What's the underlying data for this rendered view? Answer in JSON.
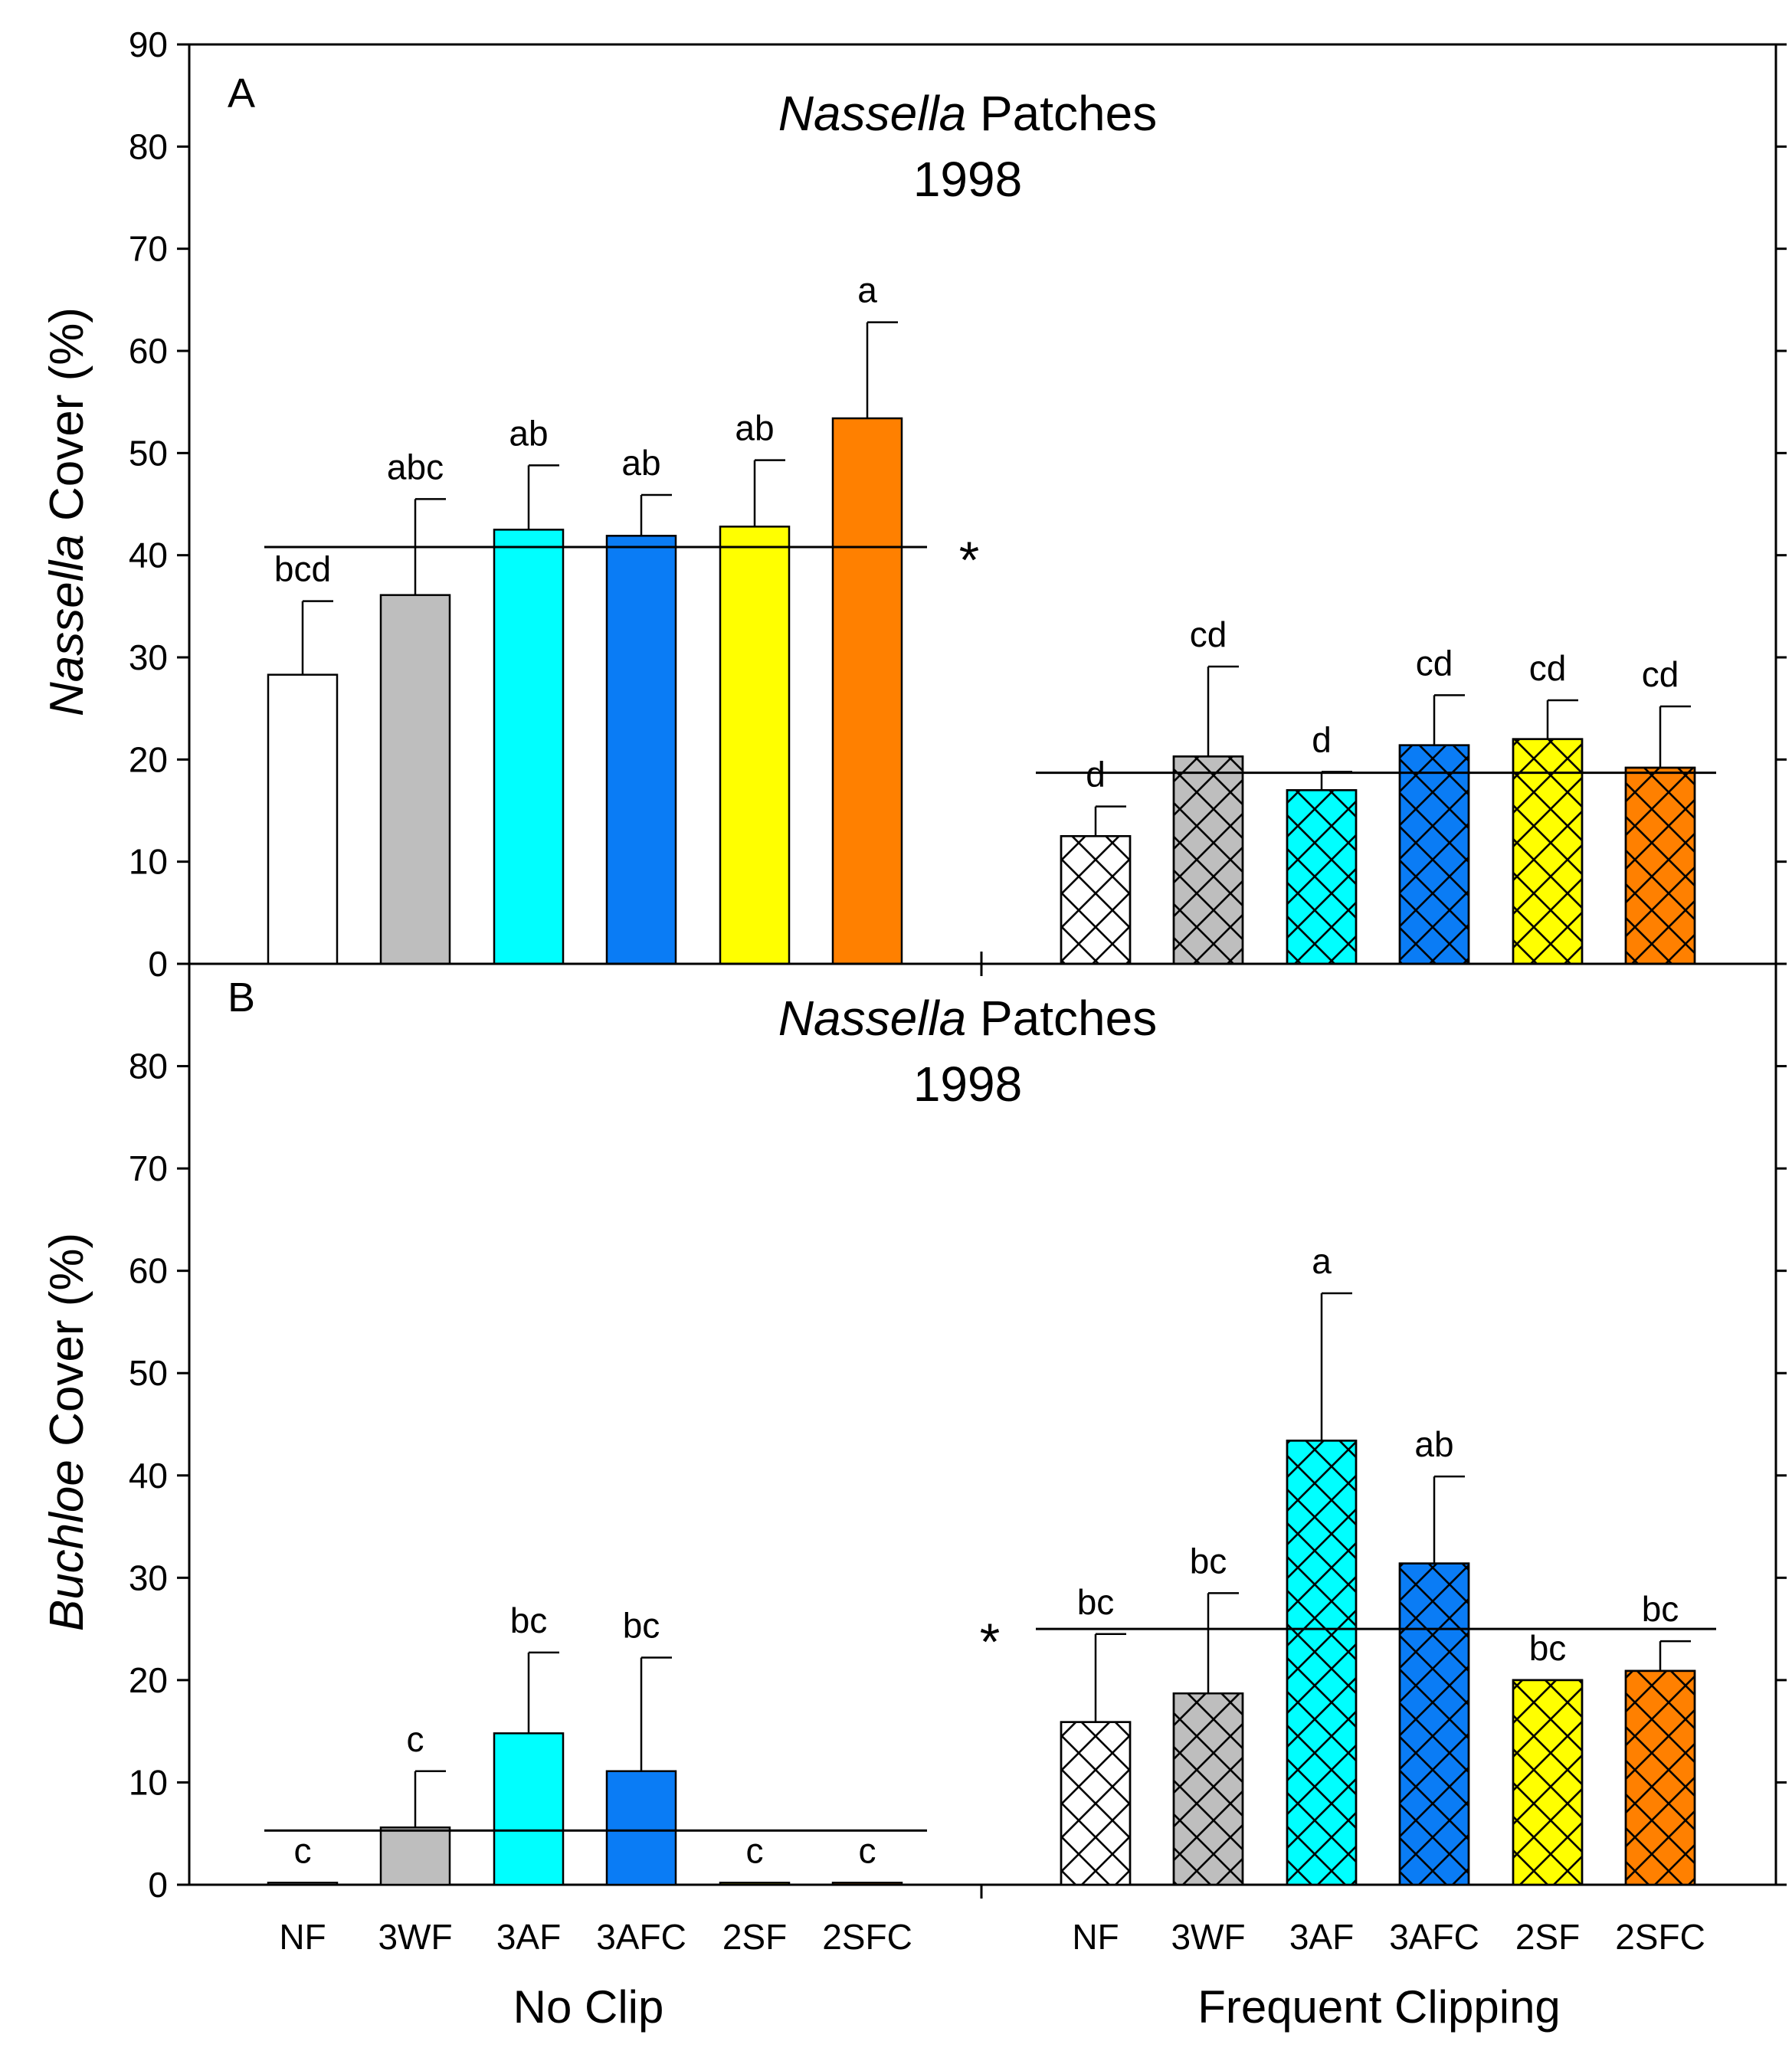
{
  "chart_data": [
    {
      "panel": "A",
      "type": "bar",
      "title": [
        "Nassella Patches",
        "1998"
      ],
      "title_italic_word": "Nassella",
      "ylabel": "Nassella Cover (%)",
      "ylabel_italic_word": "Nassella",
      "ylim": [
        0,
        90
      ],
      "yticks": [
        0,
        10,
        20,
        30,
        40,
        50,
        60,
        70,
        80,
        90
      ],
      "groups": [
        {
          "name": "No Clip",
          "hatched": false,
          "bars": [
            {
              "category": "NF",
              "value": 28.3,
              "error": 7.2,
              "letter": "bcd",
              "color": "#ffffff"
            },
            {
              "category": "3WF",
              "value": 36.1,
              "error": 9.4,
              "letter": "abc",
              "color": "#bebebe"
            },
            {
              "category": "3AF",
              "value": 42.5,
              "error": 6.3,
              "letter": "ab",
              "color": "#00ffff"
            },
            {
              "category": "3AFC",
              "value": 41.9,
              "error": 4.0,
              "letter": "ab",
              "color": "#0a7cf5"
            },
            {
              "category": "2SF",
              "value": 42.8,
              "error": 6.5,
              "letter": "ab",
              "color": "#ffff00"
            },
            {
              "category": "2SFC",
              "value": 53.4,
              "error": 9.4,
              "letter": "a",
              "color": "#ff8000"
            }
          ],
          "mean_line": 40.8,
          "star": "*",
          "star_side": "right"
        },
        {
          "name": "Frequent Clipping",
          "hatched": true,
          "bars": [
            {
              "category": "NF",
              "value": 12.5,
              "error": 2.9,
              "letter": "d",
              "color": "#ffffff"
            },
            {
              "category": "3WF",
              "value": 20.3,
              "error": 8.8,
              "letter": "cd",
              "color": "#bebebe"
            },
            {
              "category": "3AF",
              "value": 17.0,
              "error": 1.8,
              "letter": "d",
              "color": "#00ffff"
            },
            {
              "category": "3AFC",
              "value": 21.4,
              "error": 4.9,
              "letter": "cd",
              "color": "#0a7cf5"
            },
            {
              "category": "2SF",
              "value": 22.0,
              "error": 3.8,
              "letter": "cd",
              "color": "#ffff00"
            },
            {
              "category": "2SFC",
              "value": 19.2,
              "error": 6.0,
              "letter": "cd",
              "color": "#ff8000"
            }
          ],
          "mean_line": 18.7,
          "star": "",
          "star_side": "right"
        }
      ]
    },
    {
      "panel": "B",
      "type": "bar",
      "title": [
        "Nassella Patches",
        "1998"
      ],
      "title_italic_word": "Nassella",
      "ylabel": "Buchloe Cover (%)",
      "ylabel_italic_word": "Buchloe",
      "ylim": [
        0,
        90
      ],
      "yticks": [
        0,
        10,
        20,
        30,
        40,
        50,
        60,
        70,
        80
      ],
      "groups": [
        {
          "name": "No Clip",
          "hatched": false,
          "bars": [
            {
              "category": "NF",
              "value": 0.2,
              "error": 0,
              "letter": "c",
              "color": "#ffffff"
            },
            {
              "category": "3WF",
              "value": 5.6,
              "error": 5.5,
              "letter": "c",
              "color": "#bebebe"
            },
            {
              "category": "3AF",
              "value": 14.8,
              "error": 7.9,
              "letter": "bc",
              "color": "#00ffff"
            },
            {
              "category": "3AFC",
              "value": 11.1,
              "error": 11.1,
              "letter": "bc",
              "color": "#0a7cf5"
            },
            {
              "category": "2SF",
              "value": 0.2,
              "error": 0,
              "letter": "c",
              "color": "#ffff00"
            },
            {
              "category": "2SFC",
              "value": 0.2,
              "error": 0,
              "letter": "c",
              "color": "#ff8000"
            }
          ],
          "mean_line": 5.3,
          "star": "",
          "star_side": "left"
        },
        {
          "name": "Frequent Clipping",
          "hatched": true,
          "bars": [
            {
              "category": "NF",
              "value": 15.9,
              "error": 8.6,
              "letter": "bc",
              "color": "#ffffff"
            },
            {
              "category": "3WF",
              "value": 18.7,
              "error": 9.8,
              "letter": "bc",
              "color": "#bebebe"
            },
            {
              "category": "3AF",
              "value": 43.4,
              "error": 14.4,
              "letter": "a",
              "color": "#00ffff"
            },
            {
              "category": "3AFC",
              "value": 31.4,
              "error": 8.5,
              "letter": "ab",
              "color": "#0a7cf5"
            },
            {
              "category": "2SF",
              "value": 20.0,
              "error": 0,
              "letter": "bc",
              "color": "#ffff00"
            },
            {
              "category": "2SFC",
              "value": 20.9,
              "error": 2.9,
              "letter": "bc",
              "color": "#ff8000"
            }
          ],
          "mean_line": 25.0,
          "star": "*",
          "star_side": "left"
        }
      ]
    }
  ],
  "xaxis": {
    "categories_no_clip": [
      "NF",
      "3WF",
      "3AF",
      "3AFC",
      "2SF",
      "2SFC"
    ],
    "categories_frequent": [
      "NF",
      "3WF",
      "3AF",
      "3AFC",
      "2SF",
      "2SFC"
    ],
    "group_labels": [
      "No Clip",
      "Frequent Clipping"
    ]
  }
}
